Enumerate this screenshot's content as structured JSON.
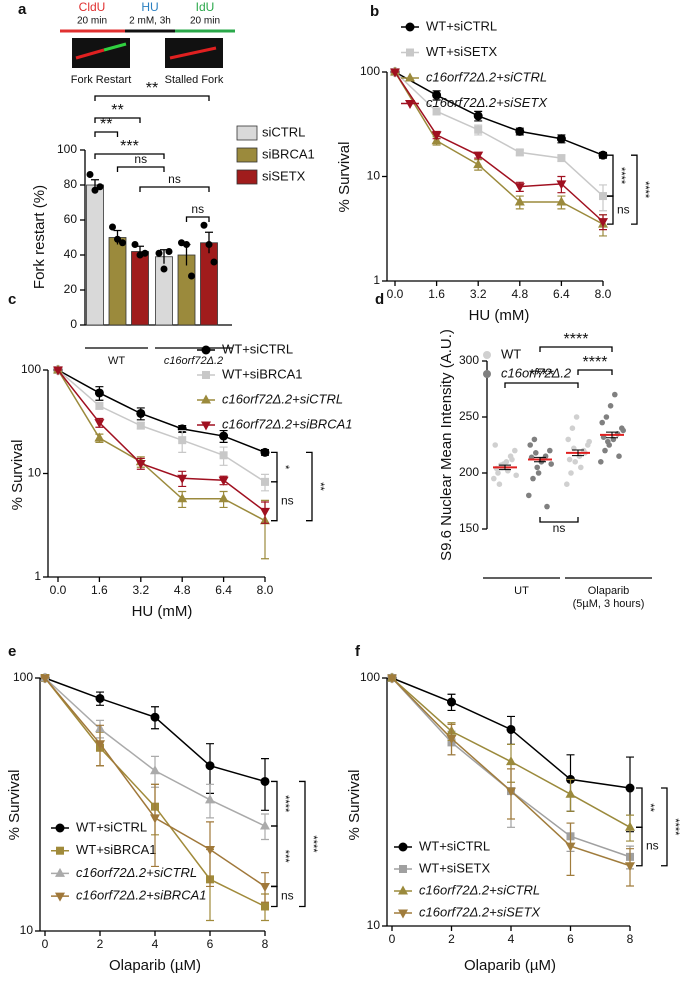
{
  "chart_data": [
    {
      "panel": "a",
      "type": "bar",
      "ylabel": "Fork restart (%)",
      "protocol": [
        [
          "CldU",
          "20 min"
        ],
        [
          "HU",
          "2 mM, 3h"
        ],
        [
          "IdU",
          "20 min"
        ]
      ],
      "protocol_colors": [
        "#e03030",
        "#2a7fc0",
        "#2aa84a"
      ],
      "image_labels": [
        "Fork Restart",
        "Stalled Fork"
      ],
      "group_labels": [
        "WT",
        "c16orf72Δ.2"
      ],
      "ylim": [
        0,
        100
      ],
      "yticks": [
        0,
        20,
        40,
        60,
        80,
        100
      ],
      "series": [
        {
          "name": "siCTRL",
          "color": "#d9d9d9",
          "values": [
            80,
            39
          ],
          "errors": [
            3,
            4
          ],
          "points": [
            [
              86,
              77,
              79
            ],
            [
              41,
              32,
              42
            ]
          ]
        },
        {
          "name": "siBRCA1",
          "color": "#9b8a3c",
          "values": [
            50,
            40
          ],
          "errors": [
            4,
            6
          ],
          "points": [
            [
              56,
              49,
              47
            ],
            [
              47,
              46,
              28
            ]
          ]
        },
        {
          "name": "siSETX",
          "color": "#a01c1c",
          "values": [
            42,
            47
          ],
          "errors": [
            3,
            6
          ],
          "points": [
            [
              46,
              40,
              41
            ],
            [
              57,
              46,
              36
            ]
          ]
        }
      ],
      "brackets": [
        {
          "label": "**",
          "from": 0,
          "to": 5
        },
        {
          "label": "**",
          "from": 0,
          "to": 2
        },
        {
          "label": "**",
          "from": 0,
          "to": 1
        },
        {
          "label": "***",
          "from": 0,
          "to": 3
        },
        {
          "label": "ns",
          "from": 1,
          "to": 3
        },
        {
          "label": "ns",
          "from": 2,
          "to": 5
        },
        {
          "label": "ns",
          "from": 4,
          "to": 5
        }
      ]
    },
    {
      "panel": "b",
      "type": "line",
      "log_y": true,
      "xlabel": "HU (mM)",
      "ylabel": "% Survival",
      "x": [
        0,
        1.6,
        3.2,
        4.8,
        6.4,
        8
      ],
      "xlim": [
        0,
        8
      ],
      "xticks": [
        {
          "value": 0,
          "label": "0.0"
        },
        1.6,
        3.2,
        4.8,
        6.4,
        {
          "value": 8,
          "label": "8.0"
        }
      ],
      "ylim": [
        1,
        100
      ],
      "yticks": [
        1,
        10,
        100
      ],
      "series": [
        {
          "name": "WT+siCTRL",
          "color": "#000000",
          "marker": "circle",
          "values": [
            100,
            60,
            38,
            27,
            23,
            16
          ],
          "errors": [
            0,
            6,
            4,
            2,
            2,
            1
          ]
        },
        {
          "name": "WT+siSETX",
          "color": "#c8c8c8",
          "marker": "square",
          "values": [
            100,
            42,
            28,
            17,
            15,
            6.5
          ],
          "errors": [
            0,
            3,
            3,
            1,
            1,
            1.8
          ]
        },
        {
          "name": "c16orf72Δ.2+siCTRL",
          "color": "#9b8a3c",
          "marker": "tri-up",
          "values": [
            100,
            22,
            13,
            5.7,
            5.7,
            3.5
          ],
          "errors": [
            0,
            2,
            1.5,
            0.8,
            0.8,
            0.8
          ]
        },
        {
          "name": "c16orf72Δ.2+siSETX",
          "color": "#a01020",
          "marker": "tri-down",
          "values": [
            100,
            25,
            16,
            8,
            8.5,
            3.7
          ],
          "errors": [
            0,
            2,
            1,
            0.8,
            1.5,
            0.6
          ]
        }
      ],
      "brackets": [
        {
          "label": "****",
          "from": 0,
          "to": 1
        },
        {
          "label": "****",
          "from": 0,
          "to": 2
        },
        {
          "label": "ns",
          "from": 1,
          "to": 2
        }
      ]
    },
    {
      "panel": "c",
      "type": "line",
      "log_y": true,
      "xlabel": "HU (mM)",
      "ylabel": "% Survival",
      "x": [
        0,
        1.6,
        3.2,
        4.8,
        6.4,
        8
      ],
      "xlim": [
        0,
        8
      ],
      "xticks": [
        {
          "value": 0,
          "label": "0.0"
        },
        1.6,
        3.2,
        4.8,
        6.4,
        {
          "value": 8,
          "label": "8.0"
        }
      ],
      "ylim": [
        1,
        100
      ],
      "yticks": [
        1,
        10,
        100
      ],
      "series": [
        {
          "name": "WT+siCTRL",
          "color": "#000000",
          "marker": "circle",
          "values": [
            100,
            60,
            38,
            27,
            23,
            16
          ],
          "errors": [
            0,
            9,
            5,
            2,
            3,
            1
          ]
        },
        {
          "name": "WT+siBRCA1",
          "color": "#c8c8c8",
          "marker": "square",
          "values": [
            100,
            45,
            29,
            21,
            15,
            8.3
          ],
          "errors": [
            0,
            3,
            2,
            5,
            3,
            1.5
          ]
        },
        {
          "name": "c16orf72Δ.2+siCTRL",
          "color": "#9b8a3c",
          "marker": "tri-up",
          "values": [
            100,
            22,
            13,
            5.7,
            5.7,
            3.5
          ],
          "errors": [
            0,
            2,
            1.5,
            1,
            1,
            2
          ]
        },
        {
          "name": "c16orf72Δ.2+siBRCA1",
          "color": "#a01020",
          "marker": "tri-down",
          "values": [
            100,
            31,
            12.5,
            9,
            8.6,
            4.3
          ],
          "errors": [
            0,
            3,
            1.5,
            1.5,
            0.8,
            1
          ]
        }
      ],
      "brackets": [
        {
          "label": "*",
          "from": 0,
          "to": 1
        },
        {
          "label": "**",
          "from": 0,
          "to": 2
        },
        {
          "label": "ns",
          "from": 1,
          "to": 2
        }
      ]
    },
    {
      "panel": "d",
      "type": "dot",
      "ylabel": "S9.6 Nuclear Mean Intensity (A.U.)",
      "group_labels": [
        [
          "UT"
        ],
        [
          "Olaparib",
          "(5µM, 3 hours)"
        ]
      ],
      "ylim": [
        150,
        300
      ],
      "yticks": [
        150,
        200,
        250,
        300
      ],
      "series": [
        {
          "name": "WT",
          "color": "#d0d0d0",
          "values": [
            205,
            218
          ],
          "errors": [
            2,
            2.5
          ],
          "points": [
            [
              195,
              200,
              205,
              210,
              215,
              220,
              225,
              190,
              208,
              202,
              212,
              198,
              204,
              207
            ],
            [
              190,
              200,
              210,
              215,
              220,
              225,
              230,
              240,
              250,
              205,
              218,
              228,
              212,
              222
            ]
          ]
        },
        {
          "name": "c16orf72Δ.2",
          "color": "#808080",
          "values": [
            212,
            234
          ],
          "errors": [
            2,
            2.5
          ],
          "points": [
            [
              180,
              195,
              205,
              210,
              215,
              220,
              225,
              230,
              200,
              212,
              170,
              208,
              214,
              218
            ],
            [
              210,
              220,
              225,
              230,
              235,
              240,
              245,
              250,
              260,
              270,
              215,
              238,
              232,
              228
            ]
          ]
        }
      ],
      "brackets": [
        {
          "label": "****",
          "from": 0,
          "to": 2
        },
        {
          "label": "****",
          "from": 1,
          "to": 3
        },
        {
          "label": "****",
          "from": 2,
          "to": 3
        },
        {
          "label": "ns",
          "from": 1,
          "to": 2
        }
      ]
    },
    {
      "panel": "e",
      "type": "line",
      "log_y": true,
      "xlabel": "Olaparib (µM)",
      "ylabel": "% Survival",
      "x": [
        0,
        2,
        4,
        6,
        8
      ],
      "xlim": [
        0,
        8
      ],
      "xticks": [
        0,
        2,
        4,
        6,
        8
      ],
      "ylim": [
        10,
        100
      ],
      "yticks": [
        10,
        100
      ],
      "series": [
        {
          "name": "WT+siCTRL",
          "color": "#000000",
          "marker": "circle",
          "values": [
            100,
            83,
            70,
            45,
            39
          ],
          "errors": [
            0,
            5,
            7,
            10,
            9
          ]
        },
        {
          "name": "WT+siBRCA1",
          "color": "#a08a3a",
          "marker": "square",
          "values": [
            100,
            53,
            31,
            16,
            12.5
          ],
          "errors": [
            0,
            8,
            7,
            5,
            1.5
          ]
        },
        {
          "name": "c16orf72Δ.2+siCTRL",
          "color": "#aaaaaa",
          "marker": "tri-up",
          "values": [
            100,
            63,
            43,
            33,
            26
          ],
          "errors": [
            0,
            5,
            6,
            5,
            3
          ]
        },
        {
          "name": "c16orf72Δ.2+siBRCA1",
          "color": "#a0783a",
          "marker": "tri-down",
          "values": [
            100,
            55,
            28,
            21,
            15
          ],
          "errors": [
            0,
            10,
            10,
            6,
            2
          ]
        }
      ],
      "brackets": [
        {
          "label": "****",
          "from": 0,
          "to": 2
        },
        {
          "label": "***",
          "from": 2,
          "to": 3
        },
        {
          "label": "****",
          "from": 0,
          "to": 1
        },
        {
          "label": "ns",
          "from": 3,
          "to": 1
        }
      ]
    },
    {
      "panel": "f",
      "type": "line",
      "log_y": true,
      "xlabel": "Olaparib (µM)",
      "ylabel": "% Survival",
      "x": [
        0,
        2,
        4,
        6,
        8
      ],
      "xlim": [
        0,
        8
      ],
      "xticks": [
        0,
        2,
        4,
        6,
        8
      ],
      "ylim": [
        10,
        100
      ],
      "yticks": [
        10,
        100
      ],
      "series": [
        {
          "name": "WT+siCTRL",
          "color": "#000000",
          "marker": "circle",
          "values": [
            100,
            80,
            62,
            39,
            36
          ],
          "errors": [
            0,
            6,
            8,
            10,
            12
          ]
        },
        {
          "name": "WT+siSETX",
          "color": "#a0a0a0",
          "marker": "square",
          "values": [
            100,
            55,
            35,
            23,
            19
          ],
          "errors": [
            0,
            6,
            10,
            3,
            2
          ]
        },
        {
          "name": "c16orf72Δ.2+siCTRL",
          "color": "#9b8a3c",
          "marker": "tri-up",
          "values": [
            100,
            61,
            46,
            34,
            25
          ],
          "errors": [
            0,
            5,
            8,
            5,
            3
          ]
        },
        {
          "name": "c16orf72Δ.2+siSETX",
          "color": "#a07c3c",
          "marker": "tri-down",
          "values": [
            100,
            57,
            35,
            21,
            17.5
          ],
          "errors": [
            0,
            8,
            8,
            5,
            3
          ]
        }
      ],
      "brackets": [
        {
          "label": "**",
          "from": 0,
          "to": 2
        },
        {
          "label": "ns",
          "from": 2,
          "to": 3
        },
        {
          "label": "****",
          "from": 0,
          "to": 3
        }
      ]
    }
  ]
}
